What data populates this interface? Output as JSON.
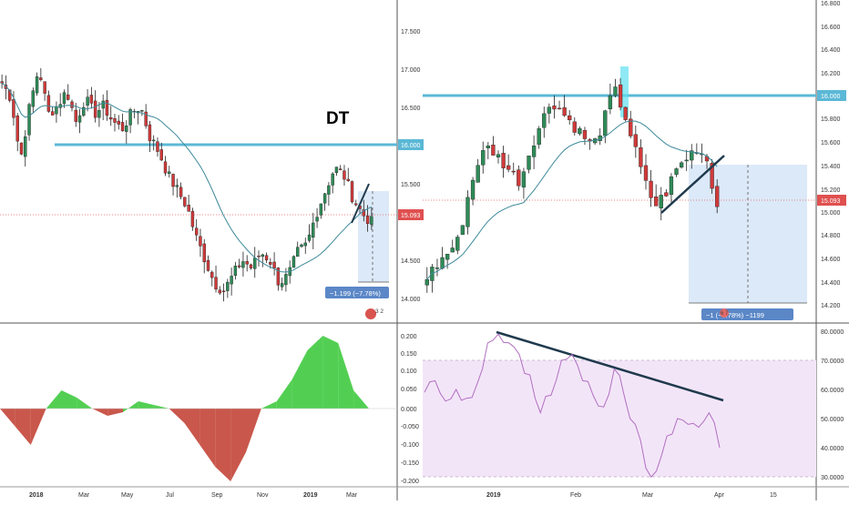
{
  "left_chart": {
    "annotation": "DT",
    "price_labels": [
      "17.500",
      "17.000",
      "16.500",
      "15.500",
      "14.500",
      "14.000"
    ],
    "level_badge": "16.000",
    "last_price_badge": "15.093",
    "measure_label": "−1.199 (−7.78%)",
    "events_badge": "3 2",
    "osc_labels": [
      "0.200",
      "0.150",
      "0.100",
      "0.050",
      "0.000",
      "-0.050",
      "-0.100",
      "-0.150",
      "-0.200"
    ],
    "date_labels": [
      "2018",
      "Mar",
      "May",
      "Jul",
      "Sep",
      "Nov",
      "2019",
      "Mar"
    ]
  },
  "right_chart": {
    "price_labels": [
      "16.800",
      "16.600",
      "16.400",
      "16.200",
      "15.800",
      "15.600",
      "15.400",
      "15.200",
      "15.000",
      "14.800",
      "14.600",
      "14.400",
      "14.200"
    ],
    "level_badge": "16.000",
    "last_price_badge": "15.093",
    "measure_label": "−1 (−7.78%) −1199",
    "events_badge": "6 7",
    "rsi_labels": [
      "80.0000",
      "70.0000",
      "60.0000",
      "50.0000",
      "40.0000",
      "30.0000"
    ],
    "date_labels": [
      "2019",
      "Feb",
      "Mar",
      "Apr",
      "15"
    ]
  },
  "colors": {
    "bull": "#2e8b57",
    "bear": "#d03a3a",
    "level_line": "#5bb8d6",
    "ma_line": "#3d8a99",
    "rsi_line": "#b06fc0",
    "rsi_band": "#f3e5f8",
    "measure_box": "#dce9f8",
    "osc_pos": "#34c734",
    "osc_neg": "#c0392b",
    "trend_line": "#1f3a4d"
  },
  "chart_data": [
    {
      "type": "candlestick",
      "panel": "left-weekly",
      "ylim": [
        13.9,
        17.8
      ],
      "x": [
        "2018",
        "Mar",
        "May",
        "Jul",
        "Sep",
        "Nov",
        "2019",
        "Mar"
      ],
      "horizontal_level": 16.0,
      "last_price": 15.093,
      "pattern_label": "DT",
      "close_path": [
        16.9,
        16.7,
        15.9,
        16.6,
        17.1,
        16.5,
        16.6,
        16.8,
        16.4,
        16.7,
        16.5,
        16.6,
        16.4,
        16.3,
        16.5,
        16.6,
        16.2,
        16.0,
        15.7,
        15.5,
        15.3,
        14.9,
        14.6,
        14.3,
        14.2,
        14.4,
        14.6,
        14.5,
        14.7,
        14.6,
        14.3,
        14.4,
        14.7,
        14.8,
        15.2,
        15.5,
        15.8,
        15.7,
        15.4,
        15.2,
        15.09
      ]
    },
    {
      "type": "area",
      "panel": "left-oscillator",
      "ylim": [
        -0.2,
        0.2
      ],
      "ticks": [
        0.2,
        0.15,
        0.1,
        0.05,
        0,
        -0.05,
        -0.1,
        -0.15,
        -0.2
      ],
      "values": [
        0.0,
        -0.05,
        -0.1,
        0.0,
        0.05,
        0.03,
        0.0,
        -0.02,
        -0.01,
        0.02,
        0.01,
        0.0,
        -0.04,
        -0.1,
        -0.16,
        -0.2,
        -0.12,
        0.0,
        0.02,
        0.08,
        0.16,
        0.2,
        0.18,
        0.05,
        0.0
      ]
    },
    {
      "type": "candlestick",
      "panel": "right-daily",
      "ylim": [
        14.18,
        16.85
      ],
      "x": [
        "2019",
        "Feb",
        "Mar",
        "Apr",
        "15"
      ],
      "horizontal_level": 16.0,
      "last_price": 15.093,
      "close_path": [
        14.5,
        14.6,
        14.7,
        14.8,
        15.2,
        15.5,
        15.6,
        15.5,
        15.4,
        15.3,
        15.6,
        15.8,
        16.0,
        15.9,
        15.8,
        15.7,
        15.6,
        15.8,
        16.1,
        15.9,
        15.6,
        15.3,
        15.1,
        15.2,
        15.4,
        15.5,
        15.6,
        15.5,
        15.09
      ]
    },
    {
      "type": "line",
      "panel": "right-rsi",
      "ylim": [
        30,
        80
      ],
      "ticks": [
        80,
        70,
        60,
        50,
        40,
        30
      ],
      "band": [
        30,
        70
      ],
      "values": [
        59,
        63,
        56,
        60,
        57,
        62,
        76,
        79,
        76,
        72,
        65,
        52,
        58,
        70,
        72,
        63,
        58,
        54,
        67,
        57,
        48,
        33,
        32,
        44,
        50,
        48,
        47,
        52,
        40
      ]
    }
  ]
}
